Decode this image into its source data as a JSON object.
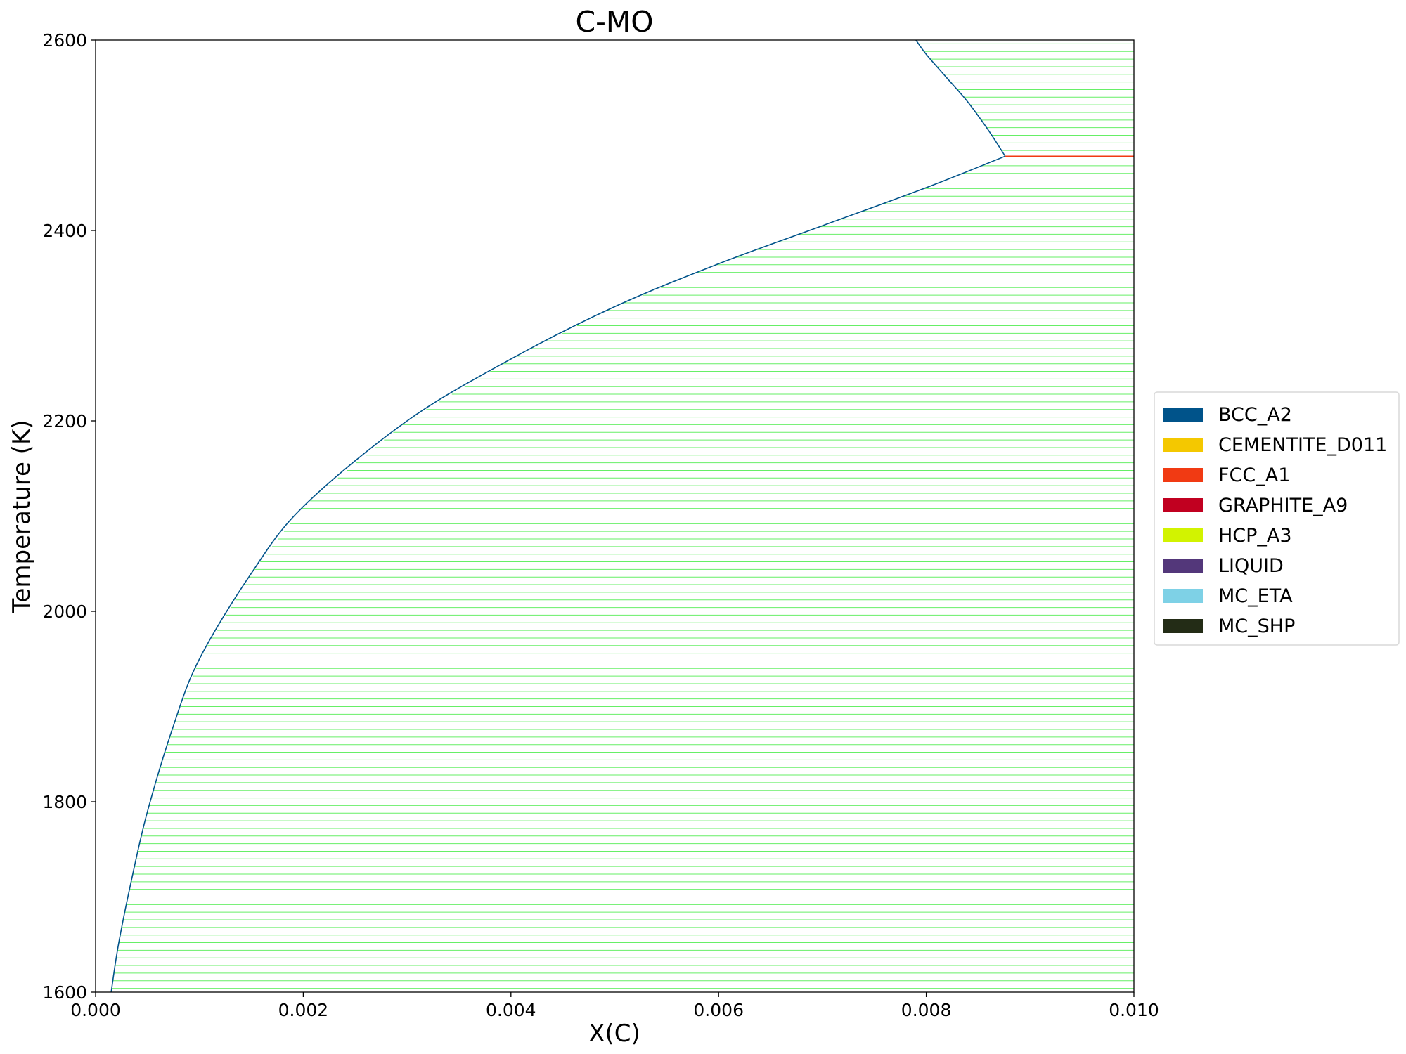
{
  "chart_data": {
    "type": "line",
    "title": "C-MO",
    "xlabel": "X(C)",
    "ylabel": "Temperature (K)",
    "xlim": [
      0.0,
      0.01
    ],
    "ylim": [
      1600,
      2600
    ],
    "x_ticks": [
      "0.000",
      "0.002",
      "0.004",
      "0.006",
      "0.008",
      "0.010"
    ],
    "y_ticks": [
      "1600",
      "1800",
      "2000",
      "2200",
      "2400",
      "2600"
    ],
    "grid": false,
    "legend_position": "right",
    "legend": [
      {
        "name": "BCC_A2",
        "color": "#00538a"
      },
      {
        "name": "CEMENTITE_D011",
        "color": "#f4c800"
      },
      {
        "name": "FCC_A1",
        "color": "#f13a13"
      },
      {
        "name": "GRAPHITE_A9",
        "color": "#c10020"
      },
      {
        "name": "HCP_A3",
        "color": "#d2f300"
      },
      {
        "name": "LIQUID",
        "color": "#53377a"
      },
      {
        "name": "MC_ETA",
        "color": "#7ed1e6"
      },
      {
        "name": "MC_SHP",
        "color": "#232c16"
      }
    ],
    "tie_line_color": "#00e400",
    "boundary_color": "#00538a",
    "series": [
      {
        "phase": "BCC_A2",
        "role": "solvus",
        "x": [
          0.00015,
          0.00022,
          0.00035,
          0.0005,
          0.00075,
          0.001,
          0.0015,
          0.002,
          0.003,
          0.004,
          0.005,
          0.006,
          0.007,
          0.008,
          0.00876
        ],
        "y": [
          1600,
          1650,
          1720,
          1790,
          1880,
          1950,
          2040,
          2110,
          2200,
          2265,
          2320,
          2365,
          2405,
          2445,
          2478
        ]
      },
      {
        "phase": "BCC_A2",
        "role": "upper boundary",
        "x": [
          0.00876,
          0.0086,
          0.0084,
          0.0082,
          0.008,
          0.0079
        ],
        "y": [
          2478,
          2505,
          2535,
          2560,
          2585,
          2600
        ]
      },
      {
        "phase": "FCC_A1",
        "role": "invariant line",
        "x": [
          0.00876,
          0.01
        ],
        "y": [
          2478,
          2478
        ]
      }
    ]
  }
}
